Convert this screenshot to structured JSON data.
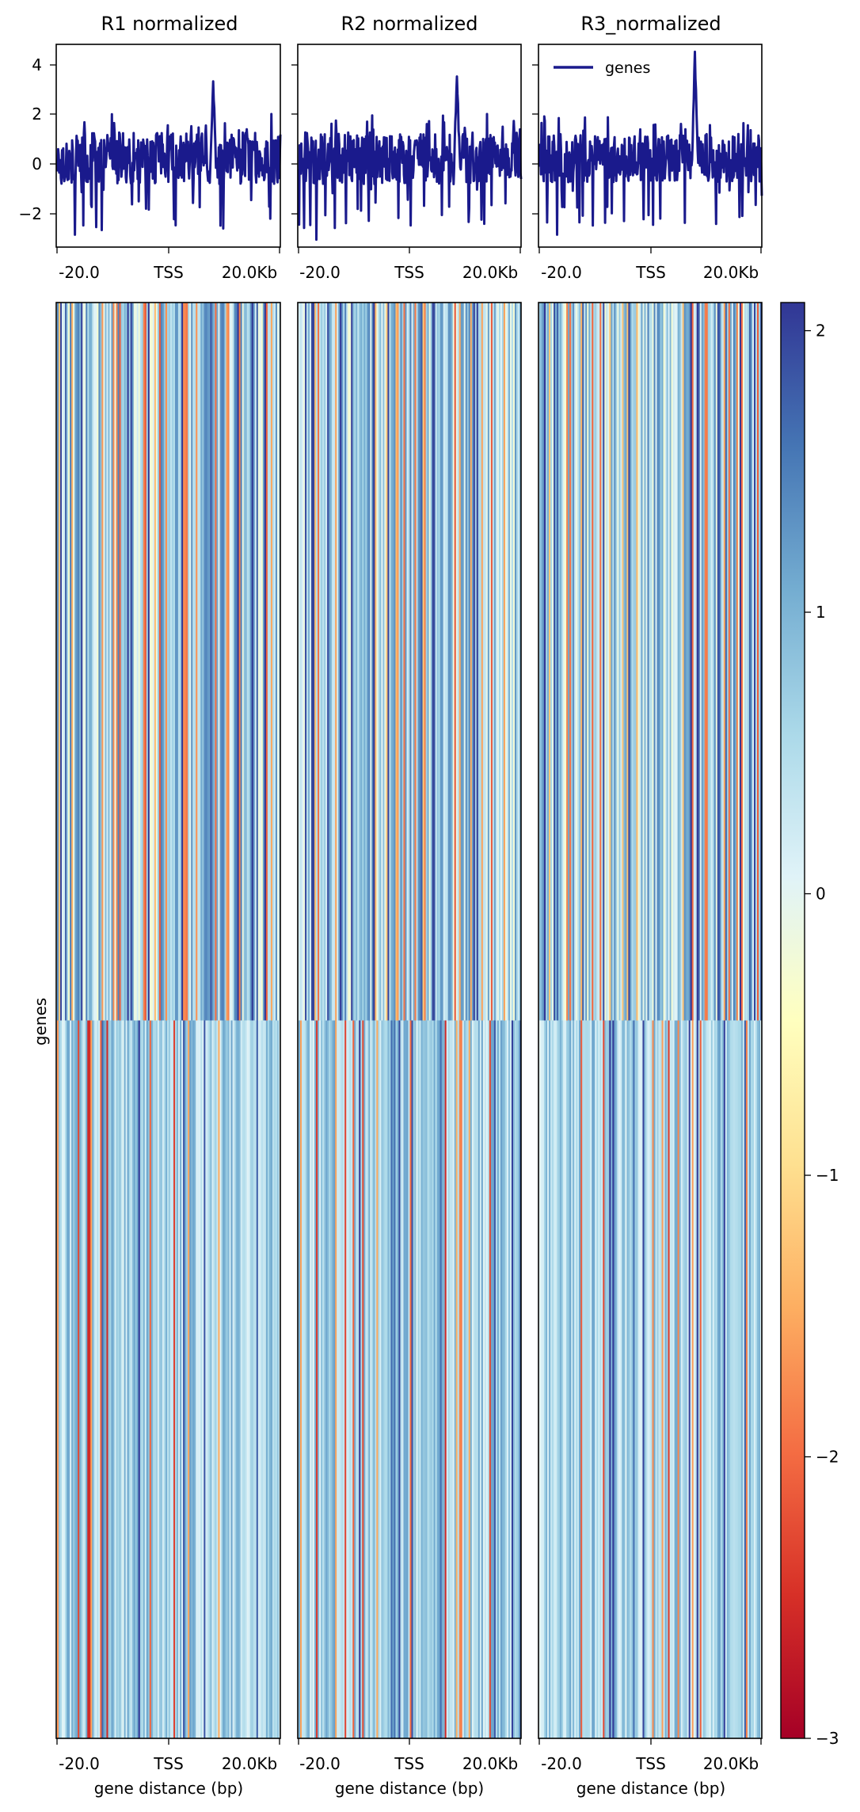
{
  "chart_data": [
    {
      "type": "line",
      "panel": "R1",
      "title": "R1 normalized",
      "x_ticks": [
        "-20.0",
        "TSS",
        "20.0Kb"
      ],
      "y_ticks": [
        4,
        2,
        0,
        -2
      ],
      "ylim": [
        -3.4,
        4.8
      ],
      "x_range_kb": [
        -20,
        20
      ],
      "series": [
        {
          "color": "#1a1a8c",
          "peak_x_kb": 8.0,
          "peak_y": 3.3,
          "min_y": -2.9,
          "baseline_y": 0.2,
          "noise_amp": 1.4
        }
      ]
    },
    {
      "type": "line",
      "panel": "R2",
      "title": "R2 normalized",
      "x_ticks": [
        "-20.0",
        "TSS",
        "20.0Kb"
      ],
      "y_ticks": [
        4,
        2,
        0,
        -2
      ],
      "ylim": [
        -3.4,
        4.8
      ],
      "x_range_kb": [
        -20,
        20
      ],
      "series": [
        {
          "color": "#1a1a8c",
          "peak_x_kb": 8.5,
          "peak_y": 3.5,
          "min_y": -3.1,
          "baseline_y": 0.2,
          "noise_amp": 1.4
        }
      ]
    },
    {
      "type": "line",
      "panel": "R3",
      "title": "R3_normalized",
      "x_ticks": [
        "-20.0",
        "TSS",
        "20.0Kb"
      ],
      "y_ticks": [
        4,
        2,
        0,
        -2
      ],
      "ylim": [
        -3.4,
        4.8
      ],
      "x_range_kb": [
        -20,
        20
      ],
      "legend": {
        "label": "genes",
        "placement": "top-left"
      },
      "series": [
        {
          "name": "genes",
          "color": "#1a1a8c",
          "peak_x_kb": 8.0,
          "peak_y": 4.5,
          "min_y": -2.9,
          "baseline_y": 0.2,
          "noise_amp": 1.3
        }
      ]
    },
    {
      "type": "heatmap",
      "panels": [
        "R1",
        "R2",
        "R3"
      ],
      "x_ticks": [
        "-20.0",
        "TSS",
        "20.0Kb"
      ],
      "xlabel": "gene distance (bp)",
      "ylabel": "genes",
      "groups": 2,
      "colormap": "RdYlBu",
      "colorbar": {
        "min": -3,
        "max": 2.1,
        "ticks": [
          2,
          1,
          0,
          -1,
          -2,
          -3
        ]
      }
    }
  ],
  "profile_titles": [
    "R1 normalized",
    "R2 normalized",
    "R3_normalized"
  ],
  "legend_label": "genes",
  "x_tick_labels": [
    "-20.0",
    "TSS",
    "20.0Kb"
  ],
  "profile_y_tick_labels": [
    "4",
    "2",
    "0",
    "−2"
  ],
  "heatmap_ylabel": "genes",
  "heatmap_xlabel": "gene distance (bp)",
  "colorbar_tick_labels": [
    "2",
    "1",
    "0",
    "−1",
    "−2",
    "−3"
  ]
}
